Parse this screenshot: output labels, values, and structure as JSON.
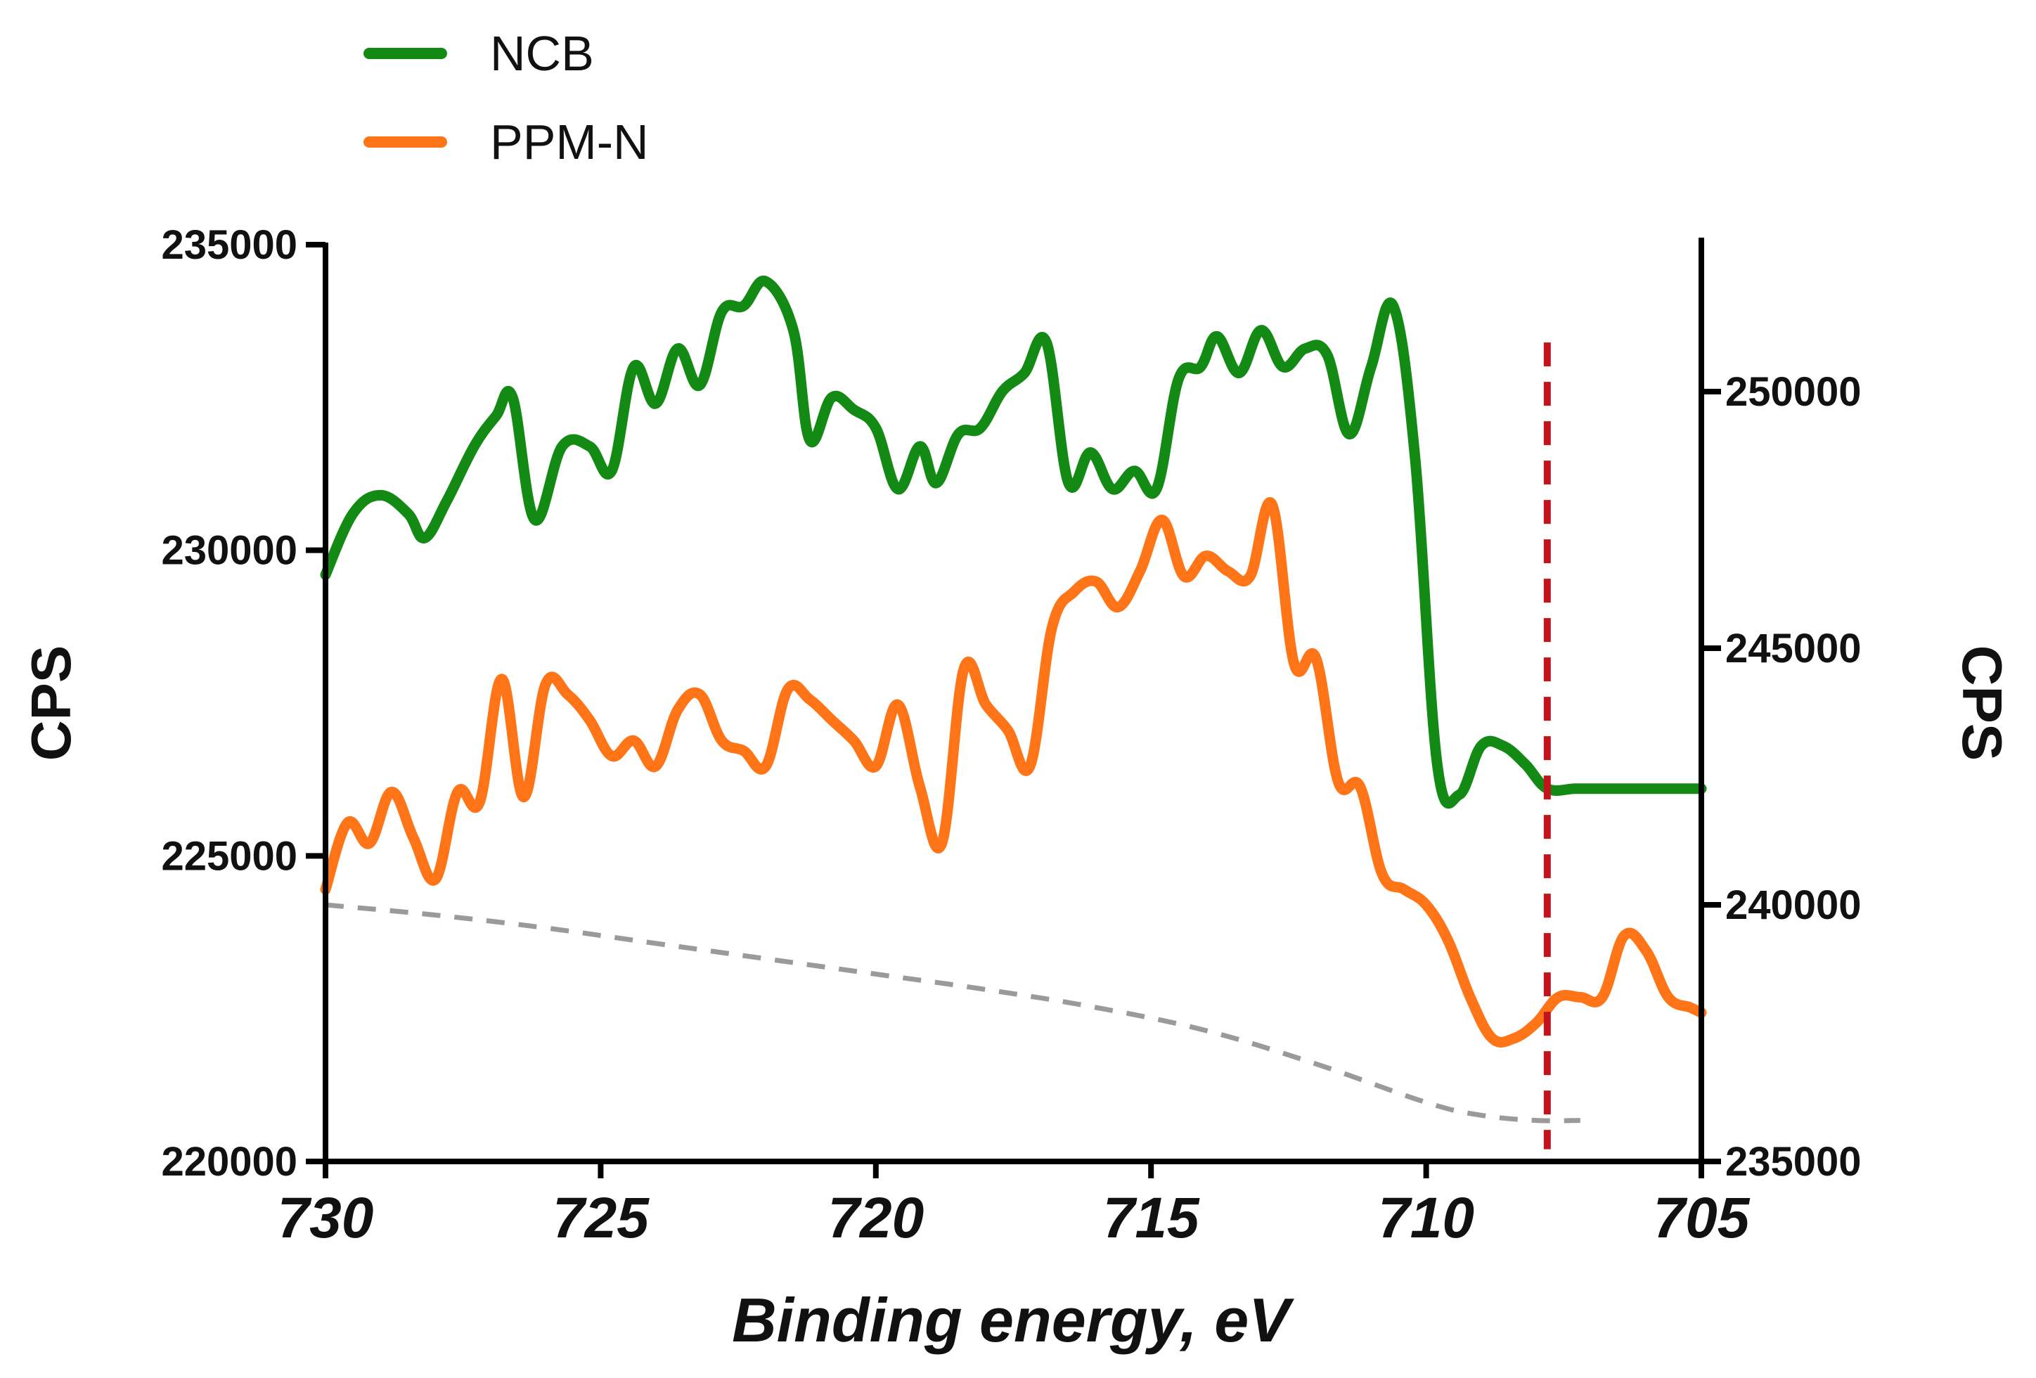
{
  "chart_data": {
    "type": "line",
    "title": "",
    "xlabel": "Binding energy, eV",
    "ylabel_left": "CPS",
    "ylabel_right": "CPS",
    "xlim": [
      730,
      705
    ],
    "ylim_left": [
      220000,
      235000
    ],
    "ylim_right": [
      235000,
      253000
    ],
    "x_ticks": [
      730,
      725,
      720,
      715,
      710,
      705
    ],
    "y_ticks_left": [
      220000,
      225000,
      230000,
      235000
    ],
    "y_ticks_right": [
      235000,
      240000,
      245000,
      250000
    ],
    "y_tick_labels_left": [
      "220000",
      "225000",
      "230000",
      "235000"
    ],
    "y_tick_labels_right": [
      "235000",
      "240000",
      "245000",
      "250000"
    ],
    "legend": {
      "position": "top-left",
      "entries": [
        "NCB",
        "PPM-N"
      ]
    },
    "series": [
      {
        "name": "NCB",
        "axis": "left",
        "color": "#138a13",
        "x": [
          730.0,
          729.5,
          729.0,
          728.5,
          728.2,
          727.8,
          727.3,
          726.9,
          726.6,
          726.2,
          725.7,
          725.2,
          724.8,
          724.4,
          724.0,
          723.6,
          723.2,
          722.8,
          722.4,
          722.0,
          721.5,
          721.2,
          720.8,
          720.4,
          720.0,
          719.6,
          719.2,
          718.9,
          718.5,
          718.1,
          717.7,
          717.3,
          716.9,
          716.5,
          716.1,
          715.7,
          715.3,
          714.9,
          714.5,
          714.1,
          713.8,
          713.4,
          713.0,
          712.6,
          712.2,
          711.8,
          711.4,
          711.0,
          710.6,
          710.2,
          709.8,
          709.4,
          709.0,
          708.6,
          708.2,
          707.8,
          707.3,
          707.0,
          706.6,
          706.2,
          705.8,
          705.4,
          705.0
        ],
        "y": [
          229600,
          230600,
          230900,
          230600,
          230200,
          230800,
          231700,
          232200,
          232500,
          230500,
          231700,
          231700,
          231300,
          233000,
          232400,
          233300,
          232700,
          233900,
          234000,
          234400,
          233600,
          231800,
          232500,
          232300,
          232000,
          231000,
          231700,
          231100,
          231900,
          232000,
          232600,
          232900,
          233400,
          231100,
          231600,
          231000,
          231300,
          231000,
          232800,
          233000,
          233500,
          232900,
          233600,
          233000,
          233300,
          233200,
          231900,
          233000,
          234000,
          231500,
          226500,
          226000,
          226800,
          226800,
          226500,
          226100,
          226100,
          226100,
          226100,
          226100,
          226100,
          226100,
          226100
        ]
      },
      {
        "name": "PPM-N",
        "axis": "right",
        "color": "#ff7417",
        "x": [
          730.0,
          729.6,
          729.2,
          728.8,
          728.4,
          728.0,
          727.6,
          727.2,
          726.8,
          726.4,
          726.0,
          725.6,
          725.2,
          724.8,
          724.4,
          724.0,
          723.6,
          723.2,
          722.8,
          722.4,
          722.0,
          721.6,
          721.2,
          720.8,
          720.4,
          720.0,
          719.6,
          719.2,
          718.8,
          718.4,
          718.0,
          717.6,
          717.2,
          716.8,
          716.4,
          716.0,
          715.6,
          715.2,
          714.8,
          714.4,
          714.0,
          713.6,
          713.2,
          712.8,
          712.4,
          712.0,
          711.6,
          711.2,
          710.8,
          710.4,
          710.0,
          709.6,
          709.2,
          708.8,
          708.4,
          708.0,
          707.6,
          707.2,
          706.8,
          706.4,
          706.0,
          705.6,
          705.2,
          705.0
        ],
        "y": [
          240300,
          241600,
          241200,
          242200,
          241300,
          240500,
          242200,
          242000,
          244400,
          242100,
          244300,
          244100,
          243600,
          242900,
          243200,
          242700,
          243800,
          244100,
          243200,
          243000,
          242700,
          244200,
          244000,
          243600,
          243200,
          242700,
          243900,
          242300,
          241200,
          244600,
          243900,
          243400,
          242700,
          245400,
          246100,
          246300,
          245800,
          246500,
          247500,
          246400,
          246800,
          246500,
          246400,
          247800,
          244700,
          244800,
          242400,
          242300,
          240600,
          240300,
          240000,
          239300,
          238200,
          237400,
          237400,
          237700,
          238200,
          238200,
          238200,
          239400,
          239100,
          238200,
          238000,
          237900
        ]
      }
    ],
    "baseline": {
      "axis": "right",
      "style": "dashed",
      "color": "#9a9a9a",
      "x": [
        730,
        728,
        726,
        724,
        722,
        720,
        718,
        716,
        714,
        712,
        710,
        709,
        708,
        707.2
      ],
      "y": [
        240000,
        239800,
        239550,
        239250,
        238950,
        238650,
        238350,
        238000,
        237550,
        236900,
        236150,
        235900,
        235800,
        235800
      ]
    },
    "marker": {
      "x": 707.8,
      "style": "dashed",
      "color": "#c3141e",
      "y_top_left": 233400,
      "y_bottom_left": 220200
    }
  }
}
